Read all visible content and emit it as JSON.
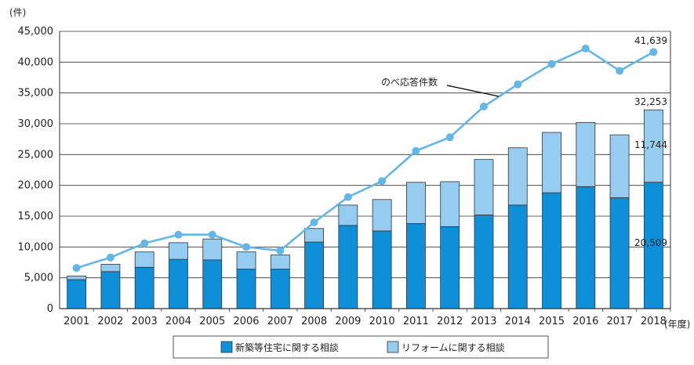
{
  "chart_data": {
    "type": "bar",
    "stacked": true,
    "y_unit": "(件)",
    "x_unit": "(年度)",
    "ylim": [
      0,
      45000
    ],
    "yticks": [
      "0",
      "5,000",
      "10,000",
      "15,000",
      "20,000",
      "25,000",
      "30,000",
      "35,000",
      "40,000",
      "45,000"
    ],
    "grid": true,
    "legend_position": "bottom-center",
    "categories": [
      "2001",
      "2002",
      "2003",
      "2004",
      "2005",
      "2006",
      "2007",
      "2008",
      "2009",
      "2010",
      "2011",
      "2012",
      "2013",
      "2014",
      "2015",
      "2016",
      "2017",
      "2018"
    ],
    "series": [
      {
        "name": "新築等住宅に関する相談",
        "kind": "bar",
        "color": "#0f8fd8",
        "values": [
          4700,
          6000,
          6700,
          8000,
          7900,
          6400,
          6400,
          10800,
          13500,
          12600,
          13800,
          13300,
          15200,
          16800,
          18800,
          19800,
          18000,
          20509
        ]
      },
      {
        "name": "リフォームに関する相談",
        "kind": "bar",
        "color": "#95ccef",
        "values": [
          600,
          1200,
          2500,
          2700,
          3400,
          2800,
          2300,
          2200,
          3300,
          5100,
          6700,
          7300,
          9000,
          9300,
          9800,
          10400,
          10200,
          11744
        ]
      },
      {
        "name": "のべ応答件数",
        "kind": "line",
        "color": "#63b7e6",
        "values": [
          6600,
          8300,
          10600,
          12000,
          12000,
          10000,
          9400,
          14000,
          18100,
          20700,
          25600,
          27800,
          32800,
          36400,
          39700,
          42200,
          38600,
          41639
        ]
      }
    ],
    "annotations": {
      "line_label": "のべ応答件数",
      "total_2018": "41,639",
      "bar_total_2018": "32,253",
      "reform_2018": "11,744",
      "new_2018": "20,509"
    }
  }
}
